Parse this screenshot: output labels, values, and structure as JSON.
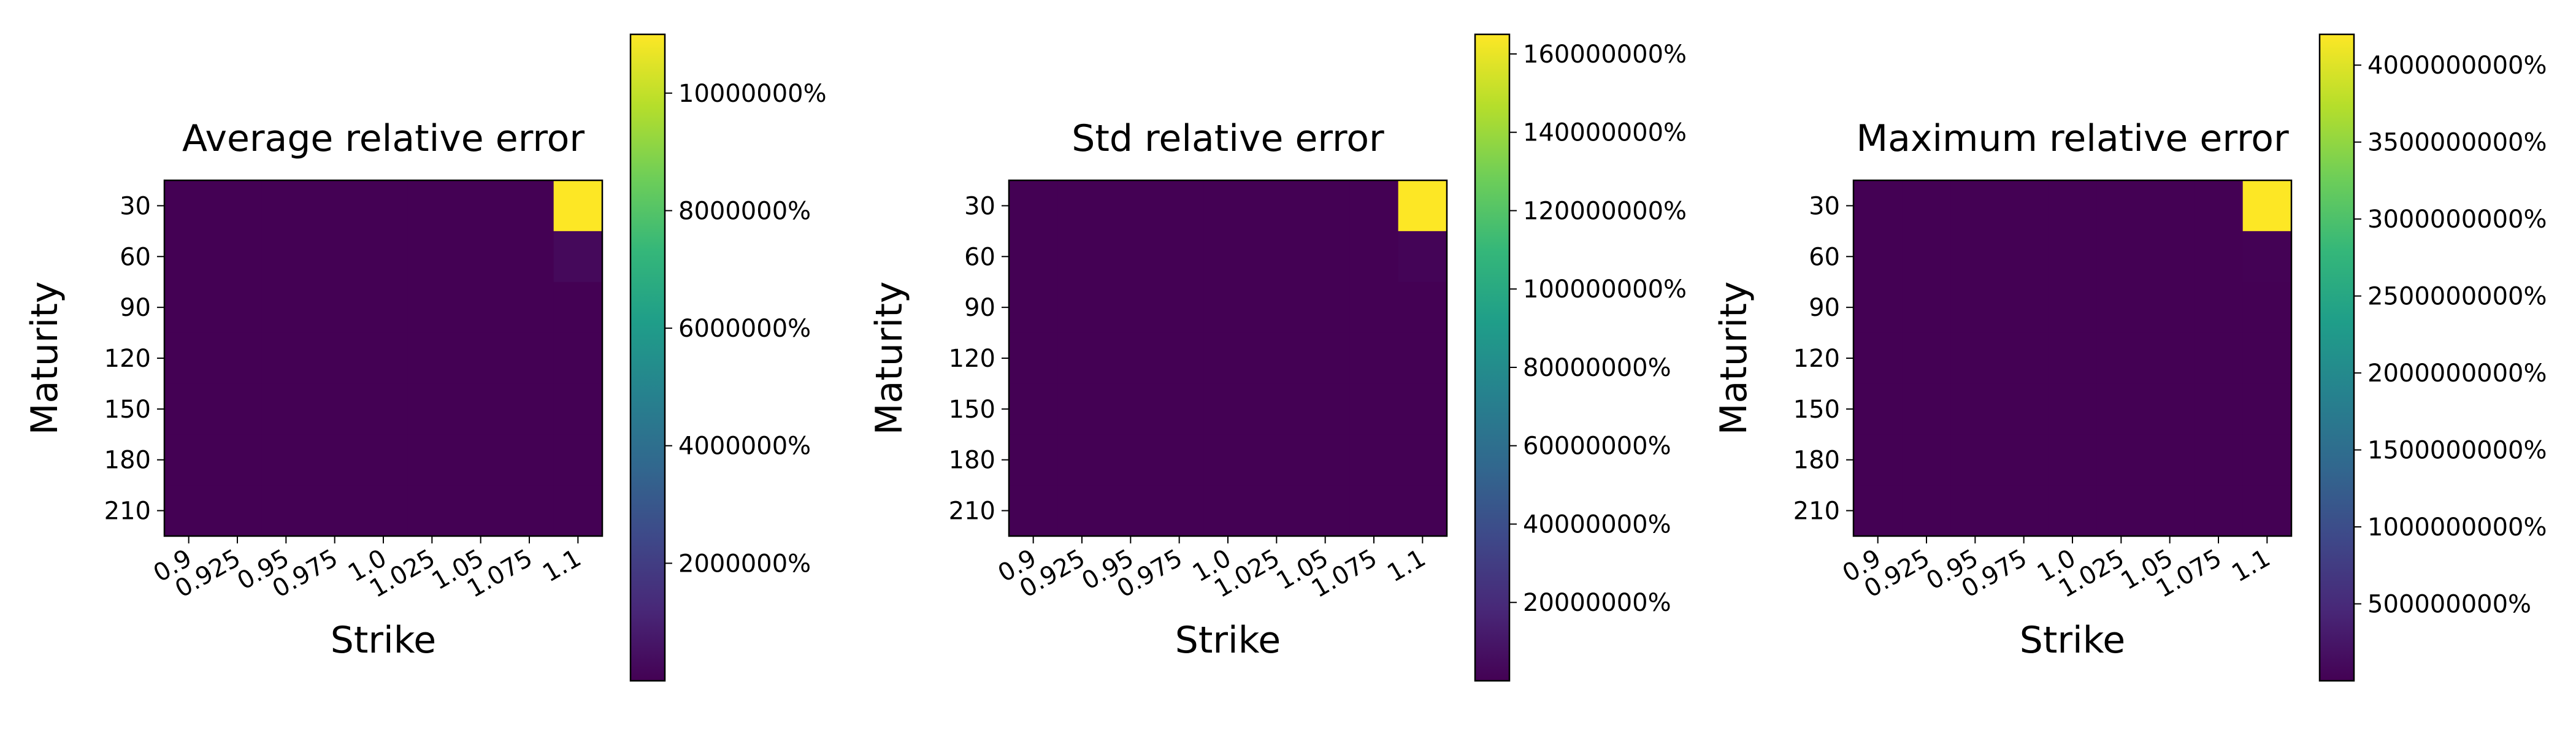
{
  "chart_data": [
    {
      "type": "heatmap",
      "title": "Average relative error",
      "xlabel": "Strike",
      "ylabel": "Maturity",
      "x_categories": [
        "0.9",
        "0.925",
        "0.95",
        "0.975",
        "1.0",
        "1.025",
        "1.05",
        "1.075",
        "1.1"
      ],
      "y_categories": [
        "30",
        "60",
        "90",
        "120",
        "150",
        "180",
        "210"
      ],
      "values": [
        [
          0.01,
          0.01,
          0.01,
          0.01,
          0.01,
          0.01,
          0.01,
          0.01,
          11000000
        ],
        [
          0.01,
          0.01,
          0.01,
          0.01,
          0.01,
          0.01,
          0.01,
          0.01,
          250000
        ],
        [
          0.01,
          0.01,
          0.01,
          0.01,
          0.01,
          0.01,
          0.01,
          0.01,
          0.01
        ],
        [
          0.01,
          0.01,
          0.01,
          0.01,
          0.01,
          0.01,
          0.01,
          0.01,
          0.01
        ],
        [
          0.01,
          0.01,
          0.01,
          0.01,
          0.01,
          0.01,
          0.01,
          0.01,
          0.01
        ],
        [
          0.01,
          0.01,
          0.01,
          0.01,
          0.01,
          0.01,
          0.01,
          0.01,
          0.01
        ],
        [
          0.01,
          0.01,
          0.01,
          0.01,
          0.01,
          0.01,
          0.01,
          0.01,
          0.01
        ]
      ],
      "value_unit": "%",
      "colorbar_range": [
        0,
        11000000
      ],
      "colorbar_ticks": [
        2000000,
        4000000,
        6000000,
        8000000,
        10000000
      ],
      "colorbar_tick_labels": [
        "2000000%",
        "4000000%",
        "6000000%",
        "8000000%",
        "10000000%"
      ],
      "colormap": "viridis"
    },
    {
      "type": "heatmap",
      "title": "Std relative error",
      "xlabel": "Strike",
      "ylabel": "Maturity",
      "x_categories": [
        "0.9",
        "0.925",
        "0.95",
        "0.975",
        "1.0",
        "1.025",
        "1.05",
        "1.075",
        "1.1"
      ],
      "y_categories": [
        "30",
        "60",
        "90",
        "120",
        "150",
        "180",
        "210"
      ],
      "values": [
        [
          0.01,
          0.01,
          0.01,
          0.01,
          0.01,
          0.01,
          0.01,
          0.01,
          165000000
        ],
        [
          0.01,
          0.01,
          0.01,
          0.01,
          0.01,
          0.01,
          0.01,
          0.01,
          1500000
        ],
        [
          0.01,
          0.01,
          0.01,
          0.01,
          0.01,
          0.01,
          0.01,
          0.01,
          0.01
        ],
        [
          0.01,
          0.01,
          0.01,
          0.01,
          0.01,
          0.01,
          0.01,
          0.01,
          0.01
        ],
        [
          0.01,
          0.01,
          0.01,
          0.01,
          0.01,
          0.01,
          0.01,
          0.01,
          0.01
        ],
        [
          0.01,
          0.01,
          0.01,
          0.01,
          0.01,
          0.01,
          0.01,
          0.01,
          0.01
        ],
        [
          0.01,
          0.01,
          0.01,
          0.01,
          0.01,
          0.01,
          0.01,
          0.01,
          0.01
        ]
      ],
      "value_unit": "%",
      "colorbar_range": [
        0,
        165000000
      ],
      "colorbar_ticks": [
        20000000,
        40000000,
        60000000,
        80000000,
        100000000,
        120000000,
        140000000,
        160000000
      ],
      "colorbar_tick_labels": [
        "20000000%",
        "40000000%",
        "60000000%",
        "80000000%",
        "100000000%",
        "120000000%",
        "140000000%",
        "160000000%"
      ],
      "colormap": "viridis"
    },
    {
      "type": "heatmap",
      "title": "Maximum relative error",
      "xlabel": "Strike",
      "ylabel": "Maturity",
      "x_categories": [
        "0.9",
        "0.925",
        "0.95",
        "0.975",
        "1.0",
        "1.025",
        "1.05",
        "1.075",
        "1.1"
      ],
      "y_categories": [
        "30",
        "60",
        "90",
        "120",
        "150",
        "180",
        "210"
      ],
      "values": [
        [
          0.01,
          0.01,
          0.01,
          0.01,
          0.01,
          0.01,
          0.01,
          0.01,
          4200000000
        ],
        [
          0.01,
          0.01,
          0.01,
          0.01,
          0.01,
          0.01,
          0.01,
          0.01,
          8000000
        ],
        [
          0.01,
          0.01,
          0.01,
          0.01,
          0.01,
          0.01,
          0.01,
          0.01,
          0.01
        ],
        [
          0.01,
          0.01,
          0.01,
          0.01,
          0.01,
          0.01,
          0.01,
          0.01,
          0.01
        ],
        [
          0.01,
          0.01,
          0.01,
          0.01,
          0.01,
          0.01,
          0.01,
          0.01,
          0.01
        ],
        [
          0.01,
          0.01,
          0.01,
          0.01,
          0.01,
          0.01,
          0.01,
          0.01,
          0.01
        ],
        [
          0.01,
          0.01,
          0.01,
          0.01,
          0.01,
          0.01,
          0.01,
          0.01,
          0.01
        ]
      ],
      "value_unit": "%",
      "colorbar_range": [
        0,
        4200000000
      ],
      "colorbar_ticks": [
        500000000,
        1000000000,
        1500000000,
        2000000000,
        2500000000,
        3000000000,
        3500000000,
        4000000000
      ],
      "colorbar_tick_labels": [
        "500000000%",
        "1000000000%",
        "1500000000%",
        "2000000000%",
        "2500000000%",
        "3000000000%",
        "3500000000%",
        "4000000000%"
      ],
      "colormap": "viridis"
    }
  ]
}
